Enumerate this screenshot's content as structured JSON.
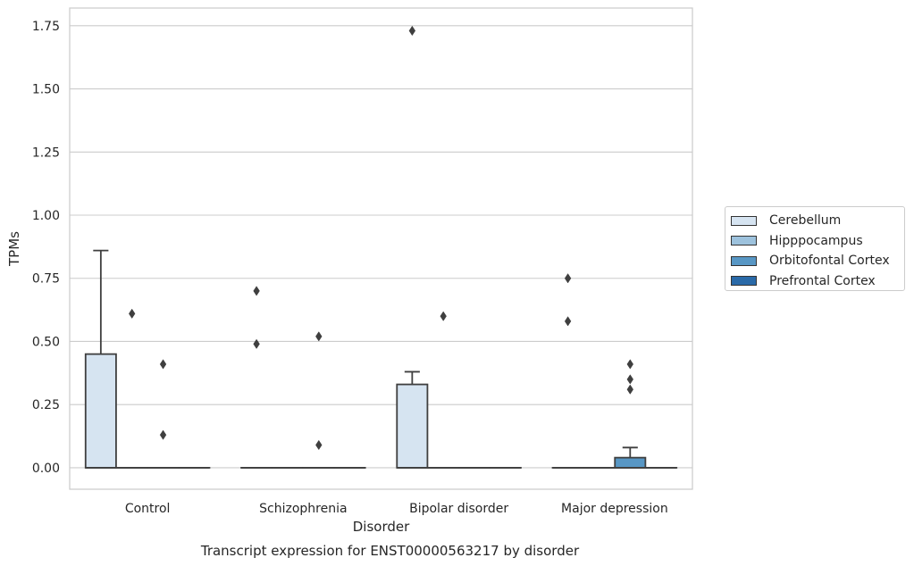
{
  "chart_data": {
    "type": "box",
    "title": "Transcript expression for ENST00000563217 by disorder",
    "xlabel": "Disorder",
    "ylabel": "TPMs",
    "ylim": [
      -0.085,
      1.82
    ],
    "yticks": [
      "0.00",
      "0.25",
      "0.50",
      "0.75",
      "1.00",
      "1.25",
      "1.50",
      "1.75"
    ],
    "grid": "horizontal",
    "legend_position": "right",
    "categories": [
      "Control",
      "Schizophrenia",
      "Bipolar disorder",
      "Major depression"
    ],
    "series": [
      {
        "name": "Cerebellum",
        "color": "#d6e4f1",
        "boxes": [
          {
            "q1": 0.0,
            "median": 0.0,
            "q3": 0.45,
            "whisker_low": 0.0,
            "whisker_high": 0.86,
            "outliers": []
          },
          {
            "q1": 0.0,
            "median": 0.0,
            "q3": 0.0,
            "whisker_low": 0.0,
            "whisker_high": 0.0,
            "outliers": [
              0.49,
              0.7
            ]
          },
          {
            "q1": 0.0,
            "median": 0.0,
            "q3": 0.33,
            "whisker_low": 0.0,
            "whisker_high": 0.38,
            "outliers": [
              1.73
            ]
          },
          {
            "q1": 0.0,
            "median": 0.0,
            "q3": 0.0,
            "whisker_low": 0.0,
            "whisker_high": 0.0,
            "outliers": [
              0.58,
              0.75
            ]
          }
        ]
      },
      {
        "name": "Hipppocampus",
        "color": "#9dc2dd",
        "boxes": [
          {
            "q1": 0.0,
            "median": 0.0,
            "q3": 0.0,
            "whisker_low": 0.0,
            "whisker_high": 0.0,
            "outliers": [
              0.61
            ]
          },
          {
            "q1": 0.0,
            "median": 0.0,
            "q3": 0.0,
            "whisker_low": 0.0,
            "whisker_high": 0.0,
            "outliers": []
          },
          {
            "q1": 0.0,
            "median": 0.0,
            "q3": 0.0,
            "whisker_low": 0.0,
            "whisker_high": 0.0,
            "outliers": [
              0.6
            ]
          },
          {
            "q1": 0.0,
            "median": 0.0,
            "q3": 0.0,
            "whisker_low": 0.0,
            "whisker_high": 0.0,
            "outliers": []
          }
        ]
      },
      {
        "name": "Orbitofontal Cortex",
        "color": "#5897c5",
        "boxes": [
          {
            "q1": 0.0,
            "median": 0.0,
            "q3": 0.0,
            "whisker_low": 0.0,
            "whisker_high": 0.0,
            "outliers": [
              0.13,
              0.41
            ]
          },
          {
            "q1": 0.0,
            "median": 0.0,
            "q3": 0.0,
            "whisker_low": 0.0,
            "whisker_high": 0.0,
            "outliers": [
              0.09,
              0.52
            ]
          },
          {
            "q1": 0.0,
            "median": 0.0,
            "q3": 0.0,
            "whisker_low": 0.0,
            "whisker_high": 0.0,
            "outliers": []
          },
          {
            "q1": 0.0,
            "median": 0.0,
            "q3": 0.04,
            "whisker_low": 0.0,
            "whisker_high": 0.08,
            "outliers": [
              0.31,
              0.35,
              0.41
            ]
          }
        ]
      },
      {
        "name": "Prefrontal Cortex",
        "color": "#2a6aa8",
        "boxes": [
          {
            "q1": 0.0,
            "median": 0.0,
            "q3": 0.0,
            "whisker_low": 0.0,
            "whisker_high": 0.0,
            "outliers": []
          },
          {
            "q1": 0.0,
            "median": 0.0,
            "q3": 0.0,
            "whisker_low": 0.0,
            "whisker_high": 0.0,
            "outliers": []
          },
          {
            "q1": 0.0,
            "median": 0.0,
            "q3": 0.0,
            "whisker_low": 0.0,
            "whisker_high": 0.0,
            "outliers": []
          },
          {
            "q1": 0.0,
            "median": 0.0,
            "q3": 0.0,
            "whisker_low": 0.0,
            "whisker_high": 0.0,
            "outliers": []
          }
        ]
      }
    ]
  }
}
